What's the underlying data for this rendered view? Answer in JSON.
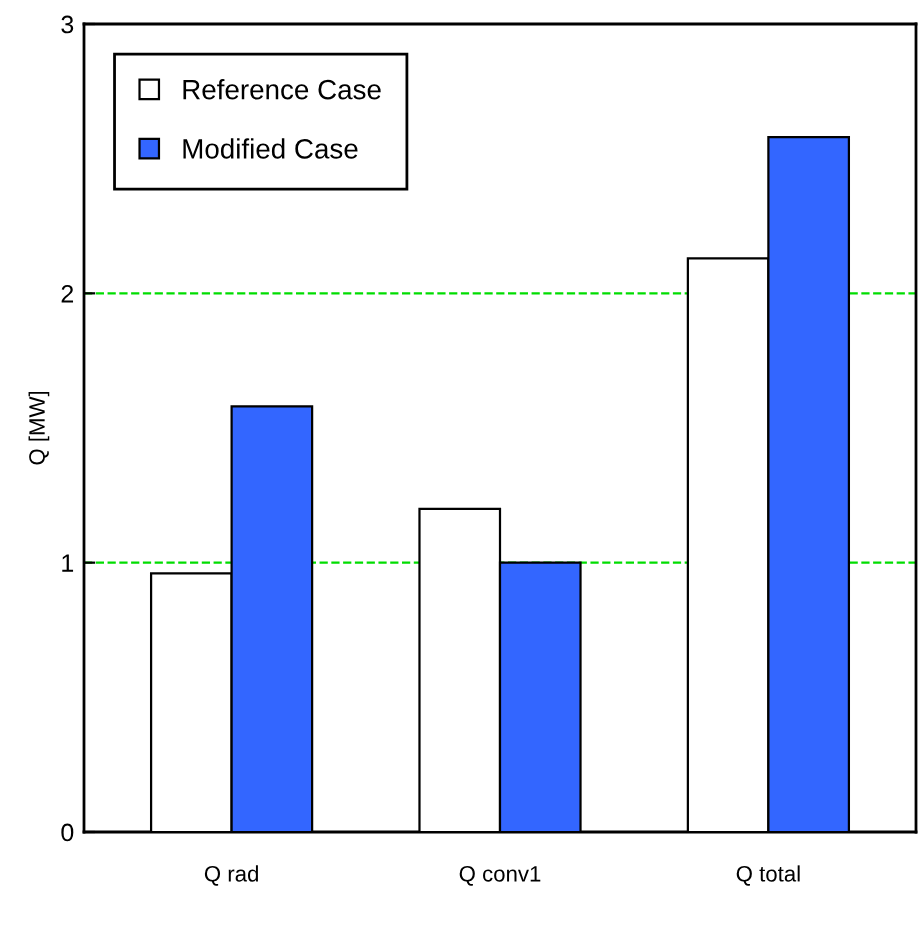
{
  "chart_data": {
    "type": "bar",
    "ylabel": "Q [MW]",
    "categories": [
      "Q rad",
      "Q conv1",
      "Q total"
    ],
    "series": [
      {
        "name": "Reference Case",
        "color": "#ffffff",
        "values": [
          0.96,
          1.2,
          2.13
        ]
      },
      {
        "name": "Modified Case",
        "color": "#3366ff",
        "values": [
          1.58,
          1.0,
          2.58
        ]
      }
    ],
    "ylim": [
      0,
      3
    ],
    "yticks": [
      0,
      1,
      2,
      3
    ],
    "grid": "y",
    "legend": "top left"
  }
}
